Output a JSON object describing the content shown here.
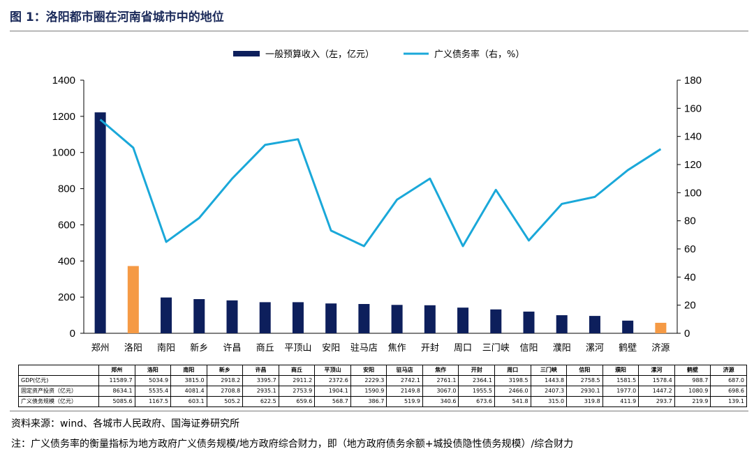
{
  "figure": {
    "title": "图 1：洛阳都市圈在河南省城市中的地位",
    "source": "资料来源：wind、各城市人民政府、国海证券研究所",
    "note": "注：广义债务率的衡量指标为地方政府广义债务规模/地方政府综合财力，即（地方政府债务余额+城投债隐性债务规模）/综合财力"
  },
  "chart_data": {
    "type": "bar",
    "title": "",
    "categories": [
      "郑州",
      "洛阳",
      "南阳",
      "新乡",
      "许昌",
      "商丘",
      "平顶山",
      "安阳",
      "驻马店",
      "焦作",
      "开封",
      "周口",
      "三门峡",
      "信阳",
      "濮阳",
      "漯河",
      "鹤壁",
      "济源"
    ],
    "y_left": {
      "min": 0,
      "max": 1400,
      "step": 200,
      "ticks": [
        "0",
        "200",
        "400",
        "600",
        "800",
        "1000",
        "1200",
        "1400"
      ]
    },
    "y_right": {
      "min": 0,
      "max": 180,
      "step": 20,
      "ticks": [
        "0",
        "20",
        "40",
        "60",
        "80",
        "100",
        "120",
        "140",
        "160",
        "180"
      ]
    },
    "grid": false,
    "legend_position": "top-center",
    "series": [
      {
        "name": "一般预算收入（左，亿元）",
        "kind": "bar",
        "axis": "left",
        "color": "#0d1f5c",
        "highlight_color": "#f59a45",
        "highlight_categories": [
          "洛阳",
          "济源"
        ],
        "values": [
          1222,
          372,
          198,
          189,
          182,
          172,
          172,
          165,
          162,
          157,
          155,
          142,
          132,
          120,
          100,
          96,
          70,
          58
        ]
      },
      {
        "name": "广义债务率（右，%）",
        "kind": "line",
        "axis": "right",
        "color": "#1aa8d9",
        "values": [
          152,
          132,
          65,
          82,
          110,
          134,
          138,
          73,
          62,
          95,
          110,
          62,
          102,
          66,
          92,
          97,
          116,
          131
        ]
      }
    ]
  },
  "table": {
    "headers": [
      "",
      "郑州",
      "洛阳",
      "南阳",
      "新乡",
      "许昌",
      "商丘",
      "平顶山",
      "安阳",
      "驻马店",
      "焦作",
      "开封",
      "周口",
      "三门峡",
      "信阳",
      "濮阳",
      "漯河",
      "鹤壁",
      "济源"
    ],
    "rows": [
      {
        "label": "GDP(亿元)",
        "values": [
          "11589.7",
          "5034.9",
          "3815.0",
          "2918.2",
          "3395.7",
          "2911.2",
          "2372.6",
          "2229.3",
          "2742.1",
          "2761.1",
          "2364.1",
          "3198.5",
          "1443.8",
          "2758.5",
          "1581.5",
          "1578.4",
          "988.7",
          "687.0"
        ]
      },
      {
        "label": "固定资产投资（亿元）",
        "values": [
          "8634.1",
          "5535.4",
          "4081.4",
          "2708.8",
          "2935.1",
          "2753.9",
          "1904.1",
          "1590.9",
          "2149.8",
          "3067.0",
          "1955.5",
          "2466.0",
          "2407.3",
          "2930.1",
          "1977.0",
          "1447.2",
          "1080.9",
          "698.6"
        ]
      },
      {
        "label": "广义债务规模（亿元）",
        "values": [
          "5085.6",
          "1167.5",
          "603.1",
          "505.2",
          "622.5",
          "659.6",
          "568.7",
          "386.7",
          "519.9",
          "340.6",
          "673.6",
          "541.8",
          "315.0",
          "319.8",
          "411.9",
          "293.7",
          "219.9",
          "139.1"
        ]
      }
    ]
  }
}
